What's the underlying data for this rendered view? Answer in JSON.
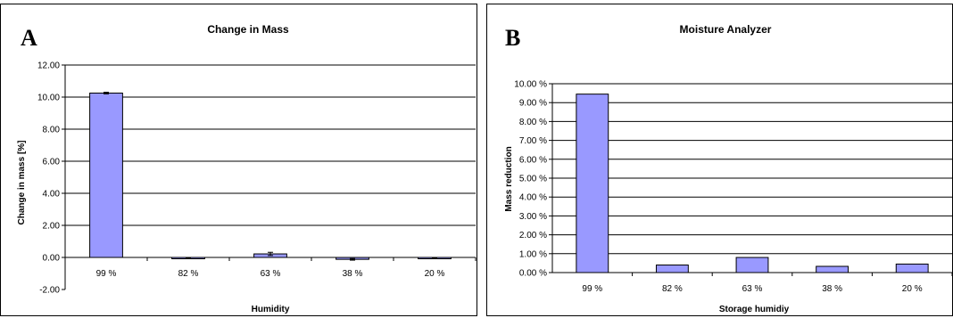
{
  "colors": {
    "bar_fill": "#9999ff",
    "bar_stroke": "#000000",
    "grid": "#000000"
  },
  "chart_data": [
    {
      "type": "bar",
      "panel_label": "A",
      "title": "Change in Mass",
      "xlabel": "Humidity",
      "ylabel": "Change in mass [%]",
      "categories": [
        "99 %",
        "82 %",
        "63 %",
        "38 %",
        "20 %"
      ],
      "values": [
        10.25,
        -0.02,
        0.22,
        -0.12,
        -0.02
      ],
      "errors": [
        0.05,
        0.02,
        0.1,
        0.05,
        0.01
      ],
      "ylim": [
        -2,
        12
      ],
      "yticks": [
        -2,
        0,
        2,
        4,
        6,
        8,
        10,
        12
      ],
      "ytick_labels": [
        "-2.00",
        "0.00",
        "2.00",
        "4.00",
        "6.00",
        "8.00",
        "10.00",
        "12.00"
      ],
      "grid": true,
      "legend": false
    },
    {
      "type": "bar",
      "panel_label": "B",
      "title": "Moisture Analyzer",
      "xlabel": "Storage humidiy",
      "ylabel": "Mass reduction",
      "categories": [
        "99 %",
        "82 %",
        "63 %",
        "38 %",
        "20 %"
      ],
      "values": [
        9.45,
        0.4,
        0.8,
        0.33,
        0.45
      ],
      "ylim": [
        0,
        10
      ],
      "yticks": [
        0,
        1,
        2,
        3,
        4,
        5,
        6,
        7,
        8,
        9,
        10
      ],
      "ytick_labels": [
        "0.00 %",
        "1.00 %",
        "2.00 %",
        "3.00 %",
        "4.00 %",
        "5.00 %",
        "6.00 %",
        "7.00 %",
        "8.00 %",
        "9.00 %",
        "10.00 %"
      ],
      "grid": true,
      "legend": false
    }
  ]
}
